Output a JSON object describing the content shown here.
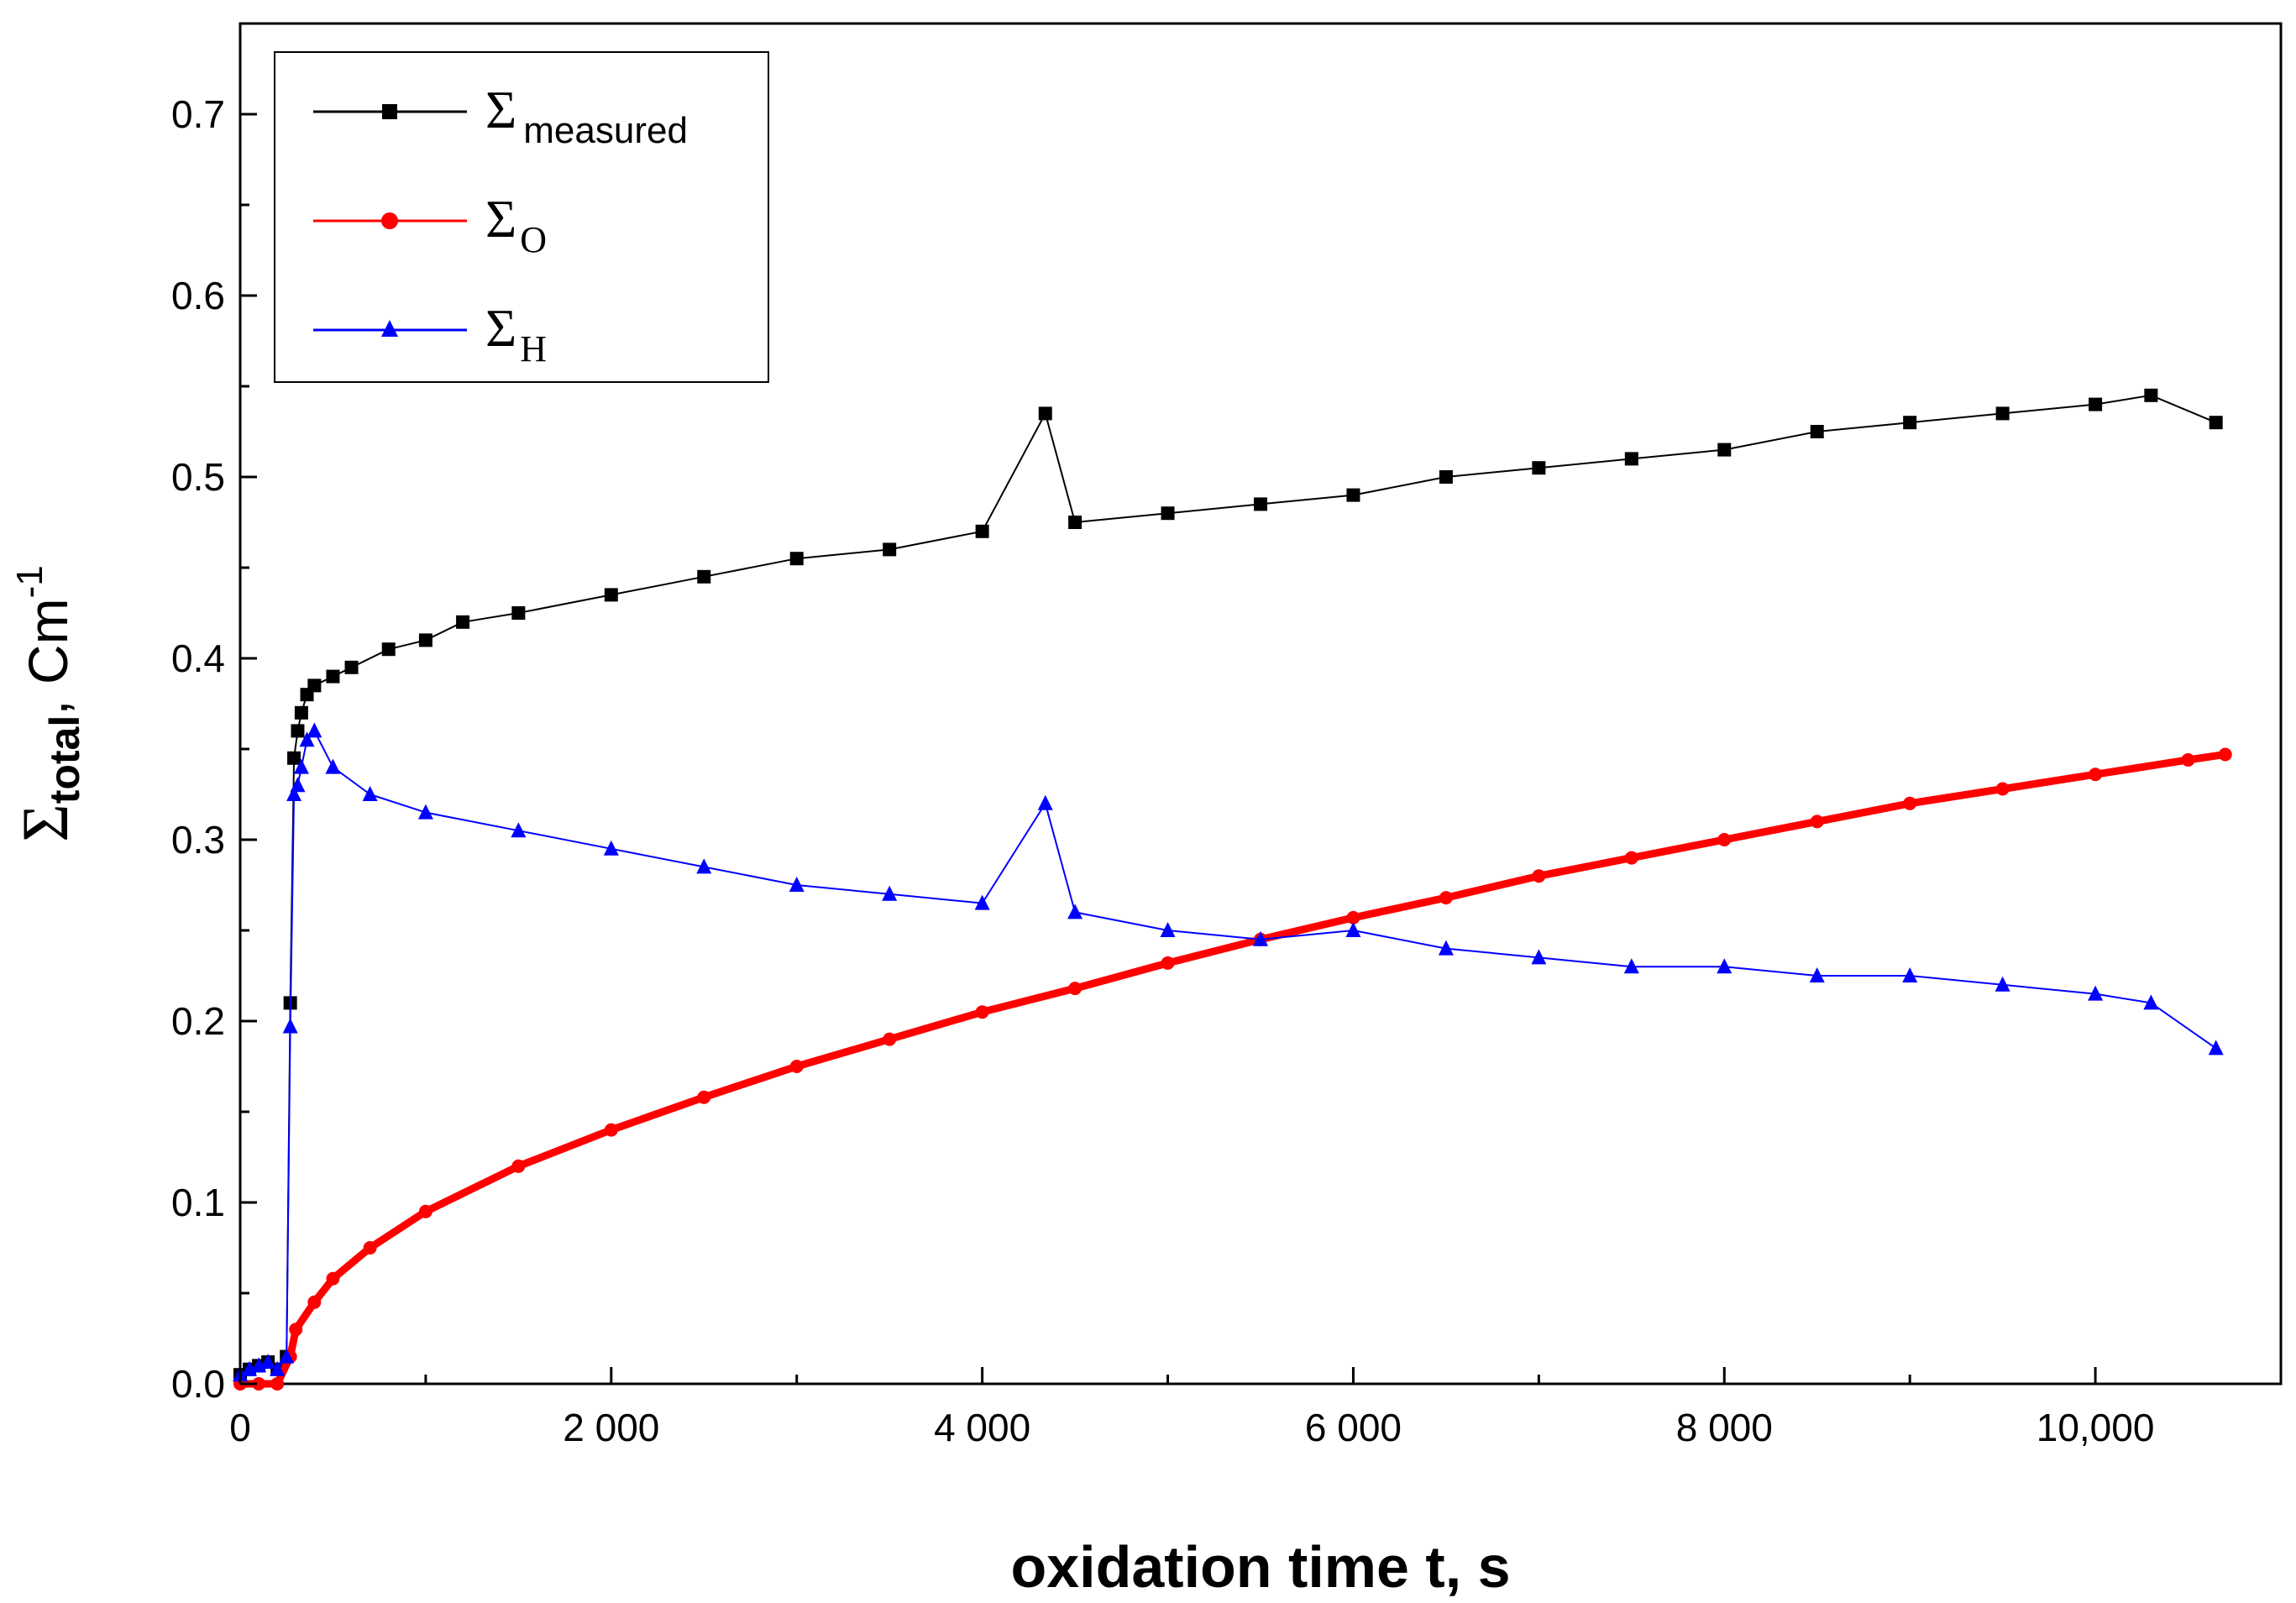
{
  "chart_data": {
    "type": "scatter",
    "title": "",
    "xlabel": "oxidation time t, s",
    "ylabel": {
      "symbol": "Σ",
      "subscript": "total",
      "unit": ", Cm",
      "superscript": "-1"
    },
    "xlim": [
      0,
      11000
    ],
    "ylim": [
      0,
      0.75
    ],
    "x_ticks": [
      0,
      2000,
      4000,
      6000,
      8000,
      10000
    ],
    "x_tick_labels": [
      "0",
      "2 000",
      "4 000",
      "6 000",
      "8 000",
      "10,000"
    ],
    "y_ticks": [
      0.0,
      0.1,
      0.2,
      0.3,
      0.4,
      0.5,
      0.6,
      0.7
    ],
    "y_tick_labels": [
      "0.0",
      "0.1",
      "0.2",
      "0.3",
      "0.4",
      "0.5",
      "0.6",
      "0.7"
    ],
    "grid": false,
    "legend_position": "top-left",
    "series": [
      {
        "name": "Σ measured",
        "symbol": "Σ",
        "subscript": "measured",
        "color": "#000000",
        "marker": "square",
        "x": [
          0,
          50,
          100,
          150,
          200,
          250,
          270,
          290,
          310,
          330,
          360,
          400,
          500,
          600,
          800,
          1000,
          1200,
          1500,
          2000,
          2500,
          3000,
          3500,
          4000,
          4340,
          4500,
          5000,
          5500,
          6000,
          6500,
          7000,
          7500,
          8000,
          8500,
          9000,
          9500,
          10000,
          10300,
          10650
        ],
        "values": [
          0.005,
          0.008,
          0.01,
          0.012,
          0.008,
          0.015,
          0.21,
          0.345,
          0.36,
          0.37,
          0.38,
          0.385,
          0.39,
          0.395,
          0.405,
          0.41,
          0.42,
          0.425,
          0.435,
          0.445,
          0.455,
          0.46,
          0.47,
          0.535,
          0.475,
          0.48,
          0.485,
          0.49,
          0.5,
          0.505,
          0.51,
          0.515,
          0.525,
          0.53,
          0.535,
          0.54,
          0.545,
          0.53
        ]
      },
      {
        "name": "Σ O",
        "symbol": "Σ",
        "subscript": "O",
        "color": "#ff0000",
        "marker": "circle",
        "x": [
          0,
          100,
          200,
          270,
          300,
          400,
          500,
          700,
          1000,
          1500,
          2000,
          2500,
          3000,
          3500,
          4000,
          4500,
          5000,
          5500,
          6000,
          6500,
          7000,
          7500,
          8000,
          8500,
          9000,
          9500,
          10000,
          10500,
          10700
        ],
        "values": [
          0.0,
          0.0,
          0.0,
          0.015,
          0.03,
          0.045,
          0.058,
          0.075,
          0.095,
          0.12,
          0.14,
          0.158,
          0.175,
          0.19,
          0.205,
          0.218,
          0.232,
          0.245,
          0.257,
          0.268,
          0.28,
          0.29,
          0.3,
          0.31,
          0.32,
          0.328,
          0.336,
          0.344,
          0.347
        ]
      },
      {
        "name": "Σ H",
        "symbol": "Σ",
        "subscript": "H",
        "color": "#0000ff",
        "marker": "triangle",
        "x": [
          0,
          50,
          100,
          150,
          200,
          250,
          270,
          290,
          310,
          330,
          360,
          400,
          500,
          700,
          1000,
          1500,
          2000,
          2500,
          3000,
          3500,
          4000,
          4340,
          4500,
          5000,
          5500,
          6000,
          6500,
          7000,
          7500,
          8000,
          8500,
          9000,
          9500,
          10000,
          10300,
          10650
        ],
        "values": [
          0.005,
          0.008,
          0.01,
          0.012,
          0.008,
          0.015,
          0.197,
          0.325,
          0.33,
          0.34,
          0.355,
          0.36,
          0.34,
          0.325,
          0.315,
          0.305,
          0.295,
          0.285,
          0.275,
          0.27,
          0.265,
          0.32,
          0.26,
          0.25,
          0.245,
          0.25,
          0.24,
          0.235,
          0.23,
          0.23,
          0.225,
          0.225,
          0.22,
          0.215,
          0.21,
          0.185
        ]
      }
    ]
  }
}
